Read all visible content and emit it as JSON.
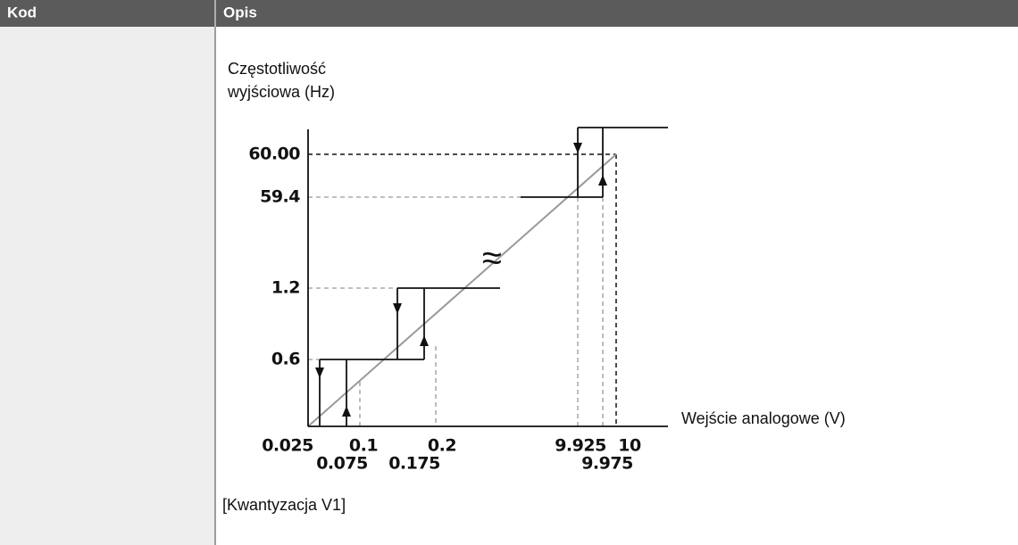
{
  "table": {
    "header": [
      "Kod",
      "Opis"
    ]
  },
  "diagram": {
    "y_axis_label": [
      "Częstotliwość",
      "wyjściowa (Hz)"
    ],
    "y_labels": [
      "60.00",
      "59.4",
      "1.2",
      "0.6"
    ],
    "x_labels_top": [
      "0.025",
      "0.1",
      "0.2",
      "9.925",
      "10"
    ],
    "x_labels_bottom": [
      "0.075",
      "0.175",
      "9.975"
    ],
    "x_axis_label": "Wejście analogowe (V)",
    "caption": "[Kwantyzacja V1]"
  }
}
